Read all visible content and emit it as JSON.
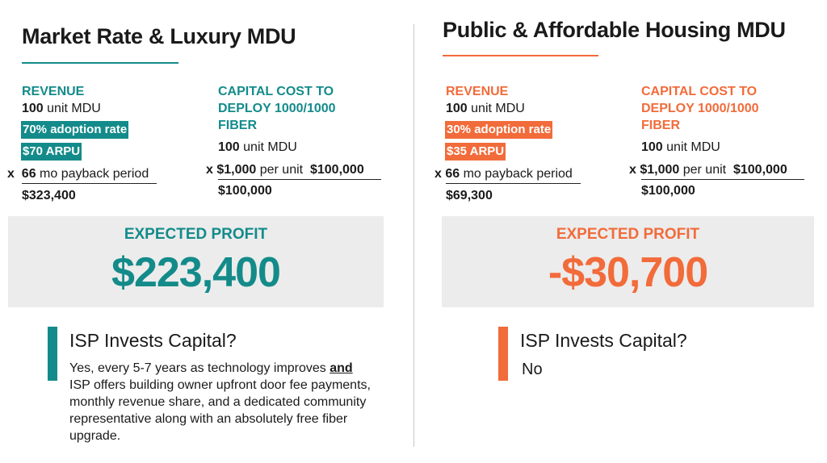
{
  "colors": {
    "teal": "#138b8a",
    "orange": "#f26b3a",
    "box_bg": "#ececec"
  },
  "left": {
    "title": "Market Rate & Luxury MDU",
    "revenue": {
      "heading": "REVENUE",
      "units_bold": "100",
      "units_text": " unit MDU",
      "adoption": "70% adoption rate",
      "arpu": "$70 ARPU",
      "mult_prefix": "x",
      "payback_bold": "66",
      "payback_text": " mo payback period",
      "total": "$323,400"
    },
    "capital": {
      "heading_line1": "CAPITAL COST TO",
      "heading_line2": "DEPLOY 1000/1000",
      "heading_line3": "FIBER",
      "units_bold": "100",
      "units_text": " unit MDU",
      "per_unit_prefix": "x $1,000",
      "per_unit_text": " per unit",
      "per_unit_total": "$100,000",
      "total": "$100,000"
    },
    "profit": {
      "label": "EXPECTED PROFIT",
      "value": "$223,400"
    },
    "isp": {
      "title": "ISP Invests Capital?",
      "text_before": "Yes, every 5-7 years as technology improves ",
      "text_emph": "and",
      "text_after": " ISP offers building owner upfront door fee payments, monthly revenue share, and a dedicated community representative along with an absolutely free fiber upgrade."
    }
  },
  "right": {
    "title": "Public & Affordable Housing MDU",
    "revenue": {
      "heading": "REVENUE",
      "units_bold": "100",
      "units_text": " unit MDU",
      "adoption": "30% adoption rate",
      "arpu": "$35 ARPU",
      "mult_prefix": "x",
      "payback_bold": "66",
      "payback_text": " mo payback period",
      "total": "$69,300"
    },
    "capital": {
      "heading_line1": "CAPITAL COST TO",
      "heading_line2": "DEPLOY 1000/1000",
      "heading_line3": "FIBER",
      "units_bold": "100",
      "units_text": " unit MDU",
      "per_unit_prefix": "x $1,000",
      "per_unit_text": " per unit",
      "per_unit_total": "$100,000",
      "total": "$100,000"
    },
    "profit": {
      "label": "EXPECTED PROFIT",
      "value": "-$30,700"
    },
    "isp": {
      "title": "ISP Invests Capital?",
      "answer": "No"
    }
  }
}
